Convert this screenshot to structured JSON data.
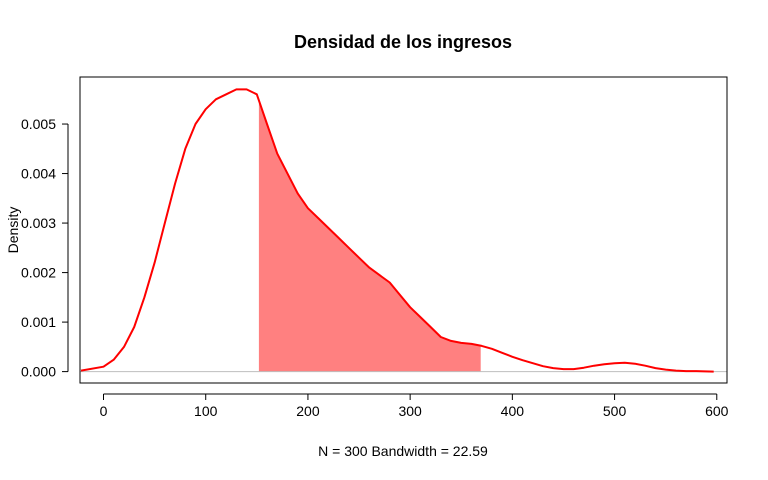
{
  "chart_data": {
    "type": "area",
    "title": "Densidad de los ingresos",
    "xlabel": "N = 300   Bandwidth = 22.59",
    "ylabel": "Density",
    "xlim": [
      -23,
      610
    ],
    "ylim": [
      -0.00023,
      0.00595
    ],
    "x_ticks": [
      0,
      100,
      200,
      300,
      400,
      500,
      600
    ],
    "x_tick_labels": [
      "0",
      "100",
      "200",
      "300",
      "400",
      "500",
      "600"
    ],
    "y_ticks": [
      0,
      0.001,
      0.002,
      0.003,
      0.004,
      0.005
    ],
    "y_tick_labels": [
      "0.000",
      "0.001",
      "0.002",
      "0.003",
      "0.004",
      "0.005"
    ],
    "grid": false,
    "series": [
      {
        "color": "#ff0000",
        "x": [
          -22,
          0,
          10,
          20,
          30,
          40,
          50,
          60,
          70,
          80,
          90,
          100,
          110,
          120,
          130,
          140,
          150,
          160,
          170,
          180,
          190,
          200,
          210,
          220,
          230,
          240,
          250,
          260,
          270,
          280,
          290,
          300,
          310,
          320,
          330,
          340,
          350,
          360,
          370,
          380,
          390,
          400,
          410,
          420,
          430,
          440,
          450,
          460,
          470,
          480,
          490,
          500,
          510,
          520,
          530,
          540,
          550,
          560,
          570,
          580,
          597
        ],
        "y": [
          2e-05,
          0.0001,
          0.00024,
          0.0005,
          0.0009,
          0.0015,
          0.0022,
          0.003,
          0.0038,
          0.0045,
          0.005,
          0.0053,
          0.0055,
          0.0056,
          0.0057,
          0.0057,
          0.0056,
          0.005,
          0.0044,
          0.004,
          0.0036,
          0.0033,
          0.0031,
          0.0029,
          0.0027,
          0.0025,
          0.0023,
          0.0021,
          0.00195,
          0.0018,
          0.00155,
          0.0013,
          0.0011,
          0.0009,
          0.0007,
          0.00062,
          0.00058,
          0.00056,
          0.00052,
          0.00046,
          0.00038,
          0.0003,
          0.00023,
          0.00017,
          0.00011,
          7e-05,
          5e-05,
          5e-05,
          8e-05,
          0.00012,
          0.00015,
          0.00017,
          0.00018,
          0.00016,
          0.00012,
          7e-05,
          4e-05,
          2e-05,
          1e-05,
          1e-05,
          0.0
        ]
      }
    ],
    "shaded_region": {
      "x_from": 152,
      "x_to": 369,
      "color": "#ff8080"
    },
    "baseline_color": "#bebebe"
  }
}
